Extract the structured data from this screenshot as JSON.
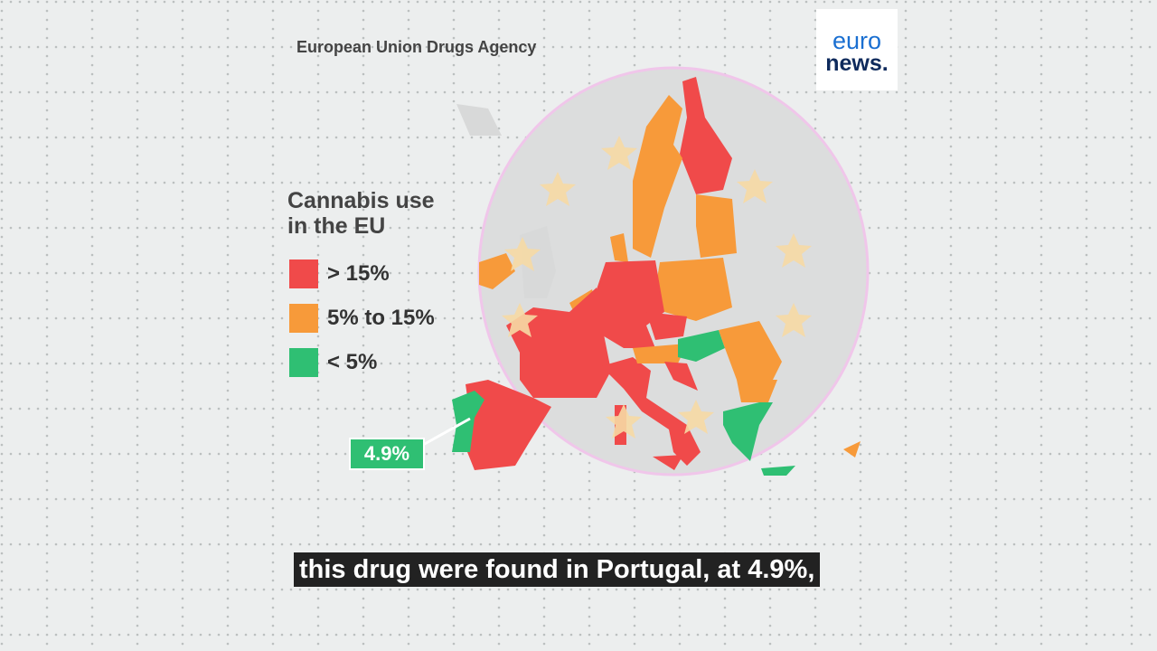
{
  "source": "European Union Drugs Agency",
  "logo": {
    "top": "euro",
    "bottom": "news."
  },
  "legend": {
    "title_lines": [
      "Cannabis use",
      "in the EU"
    ],
    "items": [
      {
        "label": "> 15%",
        "color": "#f04a4a"
      },
      {
        "label": "5% to 15%",
        "color": "#f79a3a"
      },
      {
        "label": "< 5%",
        "color": "#2fbf73"
      }
    ]
  },
  "callout": {
    "label": "4.9%",
    "color": "#2fbf73"
  },
  "caption": "this drug were found in Portugal, at 4.9%,"
}
